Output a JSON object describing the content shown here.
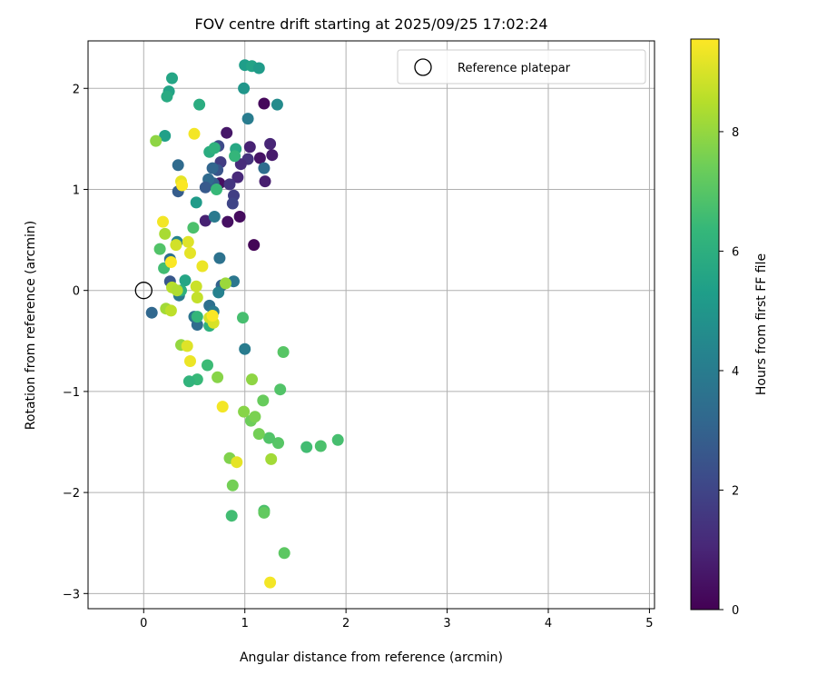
{
  "chart_data": {
    "type": "scatter",
    "title": "FOV centre drift starting at 2025/09/25 17:02:24",
    "xlabel": "Angular distance from reference (arcmin)",
    "ylabel": "Rotation from reference (arcmin)",
    "xlim": [
      -0.55,
      5.05
    ],
    "ylim": [
      -3.15,
      2.47
    ],
    "xticks": [
      0,
      1,
      2,
      3,
      4,
      5
    ],
    "yticks": [
      -3,
      -2,
      -1,
      0,
      1,
      2
    ],
    "grid": true,
    "legend": {
      "location": "top-right",
      "label": "Reference platepar"
    },
    "reference_point": {
      "x": 0,
      "y": 0
    },
    "colorbar": {
      "label": "Hours from first FF file",
      "range": [
        0,
        9.55
      ],
      "ticks": [
        0,
        2,
        4,
        6,
        8
      ],
      "colormap": "viridis",
      "stops": [
        "#440154",
        "#482878",
        "#3e4989",
        "#31688e",
        "#26828e",
        "#1f9e89",
        "#35b779",
        "#6ece58",
        "#b5de2b",
        "#fde725"
      ]
    },
    "points": [
      {
        "x": 1.09,
        "y": 0.45,
        "h": 0.1
      },
      {
        "x": 0.95,
        "y": 0.73,
        "h": 0.3
      },
      {
        "x": 0.83,
        "y": 0.68,
        "h": 0.4
      },
      {
        "x": 1.19,
        "y": 1.85,
        "h": 0.2
      },
      {
        "x": 0.82,
        "y": 1.56,
        "h": 0.6
      },
      {
        "x": 1.05,
        "y": 1.42,
        "h": 0.9
      },
      {
        "x": 1.25,
        "y": 1.45,
        "h": 1.0
      },
      {
        "x": 1.27,
        "y": 1.34,
        "h": 0.7
      },
      {
        "x": 1.15,
        "y": 1.31,
        "h": 0.5
      },
      {
        "x": 1.2,
        "y": 1.08,
        "h": 0.8
      },
      {
        "x": 0.93,
        "y": 1.12,
        "h": 1.1
      },
      {
        "x": 1.03,
        "y": 1.3,
        "h": 1.4
      },
      {
        "x": 0.96,
        "y": 1.25,
        "h": 1.2
      },
      {
        "x": 0.75,
        "y": 1.06,
        "h": 0.4
      },
      {
        "x": 0.61,
        "y": 0.69,
        "h": 0.9
      },
      {
        "x": 0.85,
        "y": 1.05,
        "h": 1.5
      },
      {
        "x": 0.89,
        "y": 0.94,
        "h": 1.8
      },
      {
        "x": 0.88,
        "y": 0.86,
        "h": 2.0
      },
      {
        "x": 0.76,
        "y": 1.27,
        "h": 1.7
      },
      {
        "x": 0.74,
        "y": 1.43,
        "h": 2.2
      },
      {
        "x": 0.73,
        "y": 1.19,
        "h": 2.5
      },
      {
        "x": 0.68,
        "y": 1.21,
        "h": 3.1
      },
      {
        "x": 0.69,
        "y": 1.06,
        "h": 2.9
      },
      {
        "x": 0.64,
        "y": 1.1,
        "h": 3.3
      },
      {
        "x": 0.61,
        "y": 1.02,
        "h": 2.7
      },
      {
        "x": 0.34,
        "y": 0.98,
        "h": 2.8
      },
      {
        "x": 0.34,
        "y": 1.24,
        "h": 3.3
      },
      {
        "x": 1.19,
        "y": 1.21,
        "h": 3.4
      },
      {
        "x": 1.03,
        "y": 1.7,
        "h": 4.0
      },
      {
        "x": 0.7,
        "y": 0.73,
        "h": 3.9
      },
      {
        "x": 0.75,
        "y": 0.32,
        "h": 3.6
      },
      {
        "x": 0.89,
        "y": 0.09,
        "h": 3.8
      },
      {
        "x": 0.77,
        "y": 0.05,
        "h": 3.0
      },
      {
        "x": 0.26,
        "y": 0.31,
        "h": 3.5
      },
      {
        "x": 0.26,
        "y": 0.09,
        "h": 2.6
      },
      {
        "x": 0.35,
        "y": -0.05,
        "h": 3.9
      },
      {
        "x": 0.08,
        "y": -0.22,
        "h": 3.2
      },
      {
        "x": 0.5,
        "y": -0.26,
        "h": 3.7
      },
      {
        "x": 0.53,
        "y": -0.34,
        "h": 3.4
      },
      {
        "x": 0.65,
        "y": -0.15,
        "h": 3.5
      },
      {
        "x": 0.69,
        "y": -0.21,
        "h": 3.9
      },
      {
        "x": 0.74,
        "y": -0.02,
        "h": 4.2
      },
      {
        "x": 1.0,
        "y": -0.58,
        "h": 4.0
      },
      {
        "x": 0.33,
        "y": 0.48,
        "h": 4.3
      },
      {
        "x": 0.52,
        "y": 0.87,
        "h": 5.2
      },
      {
        "x": 1.32,
        "y": 1.84,
        "h": 4.6
      },
      {
        "x": 0.99,
        "y": 2.0,
        "h": 5.0
      },
      {
        "x": 1.0,
        "y": 2.23,
        "h": 5.3
      },
      {
        "x": 1.07,
        "y": 2.22,
        "h": 5.5
      },
      {
        "x": 1.14,
        "y": 2.2,
        "h": 5.2
      },
      {
        "x": 0.28,
        "y": 2.1,
        "h": 5.6
      },
      {
        "x": 0.25,
        "y": 1.97,
        "h": 5.5
      },
      {
        "x": 0.23,
        "y": 1.92,
        "h": 5.8
      },
      {
        "x": 0.21,
        "y": 1.53,
        "h": 5.4
      },
      {
        "x": 0.55,
        "y": 1.84,
        "h": 5.9
      },
      {
        "x": 0.91,
        "y": 1.4,
        "h": 5.7
      },
      {
        "x": 0.65,
        "y": 1.37,
        "h": 5.9
      },
      {
        "x": 0.7,
        "y": 1.41,
        "h": 6.1
      },
      {
        "x": 0.9,
        "y": 1.33,
        "h": 6.3
      },
      {
        "x": 0.41,
        "y": 0.1,
        "h": 5.6
      },
      {
        "x": 0.37,
        "y": 0.0,
        "h": 6.0
      },
      {
        "x": 0.53,
        "y": -0.26,
        "h": 6.3
      },
      {
        "x": 0.65,
        "y": -0.35,
        "h": 6.1
      },
      {
        "x": 0.72,
        "y": 1.0,
        "h": 6.4
      },
      {
        "x": 0.49,
        "y": 0.62,
        "h": 6.8
      },
      {
        "x": 0.16,
        "y": 0.41,
        "h": 6.9
      },
      {
        "x": 0.2,
        "y": 0.22,
        "h": 6.6
      },
      {
        "x": 0.98,
        "y": -0.27,
        "h": 6.7
      },
      {
        "x": 1.38,
        "y": -0.61,
        "h": 7.0
      },
      {
        "x": 0.63,
        "y": -0.74,
        "h": 6.5
      },
      {
        "x": 0.53,
        "y": -0.88,
        "h": 6.4
      },
      {
        "x": 0.45,
        "y": -0.9,
        "h": 6.2
      },
      {
        "x": 1.35,
        "y": -0.98,
        "h": 6.9
      },
      {
        "x": 1.61,
        "y": -1.55,
        "h": 6.6
      },
      {
        "x": 1.75,
        "y": -1.54,
        "h": 6.8
      },
      {
        "x": 1.92,
        "y": -1.48,
        "h": 6.7
      },
      {
        "x": 1.33,
        "y": -1.51,
        "h": 7.0
      },
      {
        "x": 1.24,
        "y": -1.46,
        "h": 6.9
      },
      {
        "x": 0.87,
        "y": -2.23,
        "h": 6.6
      },
      {
        "x": 1.19,
        "y": -2.18,
        "h": 6.8
      },
      {
        "x": 1.19,
        "y": -2.2,
        "h": 7.2
      },
      {
        "x": 1.39,
        "y": -2.6,
        "h": 7.1
      },
      {
        "x": 1.06,
        "y": -1.29,
        "h": 7.4
      },
      {
        "x": 1.1,
        "y": -1.25,
        "h": 7.6
      },
      {
        "x": 0.99,
        "y": -1.2,
        "h": 7.8
      },
      {
        "x": 1.14,
        "y": -1.42,
        "h": 7.5
      },
      {
        "x": 1.18,
        "y": -1.09,
        "h": 7.3
      },
      {
        "x": 0.85,
        "y": -1.66,
        "h": 7.7
      },
      {
        "x": 0.88,
        "y": -1.93,
        "h": 7.5
      },
      {
        "x": 1.26,
        "y": -1.67,
        "h": 8.2
      },
      {
        "x": 1.07,
        "y": -0.88,
        "h": 7.9
      },
      {
        "x": 0.73,
        "y": -0.86,
        "h": 7.8
      },
      {
        "x": 0.37,
        "y": -0.54,
        "h": 8.0
      },
      {
        "x": 0.12,
        "y": 1.48,
        "h": 7.9
      },
      {
        "x": 0.21,
        "y": 0.56,
        "h": 8.3
      },
      {
        "x": 0.81,
        "y": 0.07,
        "h": 8.1
      },
      {
        "x": 0.28,
        "y": 0.03,
        "h": 8.5
      },
      {
        "x": 0.33,
        "y": 0.0,
        "h": 8.4
      },
      {
        "x": 0.22,
        "y": -0.18,
        "h": 8.2
      },
      {
        "x": 0.27,
        "y": -0.2,
        "h": 8.6
      },
      {
        "x": 0.53,
        "y": -0.07,
        "h": 8.7
      },
      {
        "x": 0.65,
        "y": -0.27,
        "h": 8.9
      },
      {
        "x": 0.69,
        "y": -0.32,
        "h": 9.0
      },
      {
        "x": 0.52,
        "y": 0.04,
        "h": 8.8
      },
      {
        "x": 0.32,
        "y": 0.45,
        "h": 8.9
      },
      {
        "x": 0.44,
        "y": 0.48,
        "h": 9.1
      },
      {
        "x": 0.46,
        "y": 0.37,
        "h": 9.2
      },
      {
        "x": 0.58,
        "y": 0.24,
        "h": 9.3
      },
      {
        "x": 0.27,
        "y": 0.28,
        "h": 9.5
      },
      {
        "x": 0.19,
        "y": 0.68,
        "h": 9.4
      },
      {
        "x": 0.37,
        "y": 1.08,
        "h": 9.2
      },
      {
        "x": 0.38,
        "y": 1.04,
        "h": 9.5
      },
      {
        "x": 0.5,
        "y": 1.55,
        "h": 9.4
      },
      {
        "x": 0.43,
        "y": -0.55,
        "h": 9.1
      },
      {
        "x": 0.46,
        "y": -0.7,
        "h": 9.3
      },
      {
        "x": 0.68,
        "y": -0.25,
        "h": 9.5
      },
      {
        "x": 0.78,
        "y": -1.15,
        "h": 9.4
      },
      {
        "x": 0.92,
        "y": -1.7,
        "h": 9.2
      },
      {
        "x": 1.25,
        "y": -2.89,
        "h": 9.4
      }
    ]
  }
}
